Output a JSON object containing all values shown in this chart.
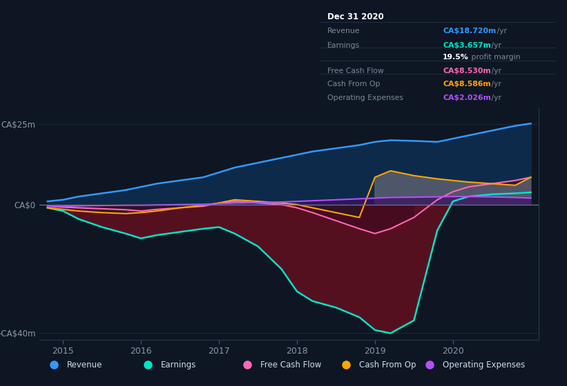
{
  "bg_color": "#0e1623",
  "plot_bg_color": "#0e1623",
  "grid_color": "#1e2d40",
  "zero_line_color": "#6a7a90",
  "ylim": [
    -42,
    30
  ],
  "yticks": [
    -40,
    0,
    25
  ],
  "ytick_labels": [
    "-CA$40m",
    "CA$0",
    "CA$25m"
  ],
  "xlim": [
    2014.7,
    2021.1
  ],
  "xticks": [
    2015,
    2016,
    2017,
    2018,
    2019,
    2020
  ],
  "legend": [
    {
      "label": "Revenue",
      "color": "#3399ff"
    },
    {
      "label": "Earnings",
      "color": "#00e5c8"
    },
    {
      "label": "Free Cash Flow",
      "color": "#ff69b4"
    },
    {
      "label": "Cash From Op",
      "color": "#ffa500"
    },
    {
      "label": "Operating Expenses",
      "color": "#b44fff"
    }
  ],
  "series": {
    "x": [
      2014.8,
      2015.0,
      2015.2,
      2015.5,
      2015.8,
      2016.0,
      2016.2,
      2016.5,
      2016.8,
      2017.0,
      2017.2,
      2017.5,
      2017.8,
      2018.0,
      2018.2,
      2018.5,
      2018.8,
      2019.0,
      2019.2,
      2019.5,
      2019.8,
      2020.0,
      2020.2,
      2020.5,
      2020.8,
      2021.0
    ],
    "revenue": [
      1.0,
      1.5,
      2.5,
      3.5,
      4.5,
      5.5,
      6.5,
      7.5,
      8.5,
      10.0,
      11.5,
      13.0,
      14.5,
      15.5,
      16.5,
      17.5,
      18.5,
      19.5,
      20.0,
      19.8,
      19.5,
      20.5,
      21.5,
      23.0,
      24.5,
      25.2
    ],
    "earnings": [
      -1.0,
      -2.0,
      -4.5,
      -7.0,
      -9.0,
      -10.5,
      -9.5,
      -8.5,
      -7.5,
      -7.0,
      -9.0,
      -13.0,
      -20.0,
      -27.0,
      -30.0,
      -32.0,
      -35.0,
      -39.0,
      -40.0,
      -36.0,
      -8.0,
      1.0,
      2.5,
      3.2,
      3.5,
      3.8
    ],
    "free_cash_flow": [
      -0.5,
      -0.8,
      -1.0,
      -1.3,
      -1.6,
      -2.0,
      -1.5,
      -1.0,
      -0.5,
      0.5,
      1.0,
      0.5,
      0.0,
      -1.0,
      -2.5,
      -5.0,
      -7.5,
      -9.0,
      -7.5,
      -4.0,
      1.5,
      4.0,
      5.5,
      6.5,
      7.5,
      8.5
    ],
    "cash_from_op": [
      -1.0,
      -1.5,
      -2.0,
      -2.5,
      -2.8,
      -2.5,
      -2.0,
      -1.0,
      -0.2,
      0.5,
      1.5,
      1.0,
      0.5,
      0.0,
      -1.0,
      -2.5,
      -4.0,
      8.5,
      10.5,
      9.0,
      8.0,
      7.5,
      7.0,
      6.5,
      6.0,
      8.5
    ],
    "op_expenses": [
      -0.5,
      -0.5,
      -0.4,
      -0.3,
      -0.2,
      -0.2,
      -0.1,
      0.0,
      0.1,
      0.3,
      0.5,
      0.6,
      0.8,
      1.0,
      1.2,
      1.5,
      1.8,
      2.0,
      2.2,
      2.3,
      2.4,
      2.5,
      2.5,
      2.4,
      2.2,
      2.0
    ]
  }
}
